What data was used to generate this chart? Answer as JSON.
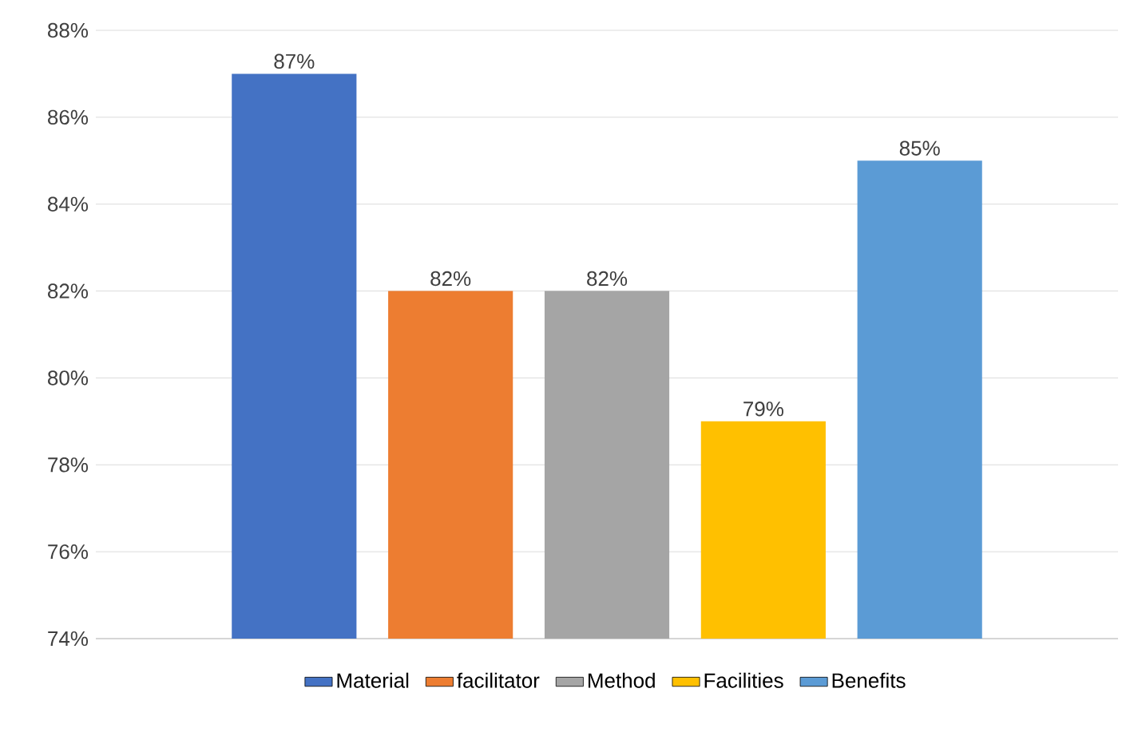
{
  "chart_data": {
    "type": "bar",
    "categories": [
      null
    ],
    "series": [
      {
        "name": "Material",
        "color": "#4472c4",
        "values": [
          87
        ],
        "value_labels": [
          "87%"
        ]
      },
      {
        "name": "facilitator",
        "color": "#ed7d31",
        "values": [
          82
        ],
        "value_labels": [
          "82%"
        ]
      },
      {
        "name": "Method",
        "color": "#a5a5a5",
        "values": [
          82
        ],
        "value_labels": [
          "82%"
        ]
      },
      {
        "name": "Facilities",
        "color": "#ffc000",
        "values": [
          79
        ],
        "value_labels": [
          "79%"
        ]
      },
      {
        "name": "Benefits",
        "color": "#5b9bd5",
        "values": [
          85
        ],
        "value_labels": [
          "85%"
        ]
      }
    ],
    "ylim": [
      74,
      88
    ],
    "yticks": [
      {
        "value": 74,
        "label": "74%"
      },
      {
        "value": 76,
        "label": "76%"
      },
      {
        "value": 78,
        "label": "78%"
      },
      {
        "value": 80,
        "label": "80%"
      },
      {
        "value": 82,
        "label": "82%"
      },
      {
        "value": 84,
        "label": "84%"
      },
      {
        "value": 86,
        "label": "86%"
      },
      {
        "value": 88,
        "label": "88%"
      }
    ],
    "grid": "y",
    "legend": "bottom"
  }
}
